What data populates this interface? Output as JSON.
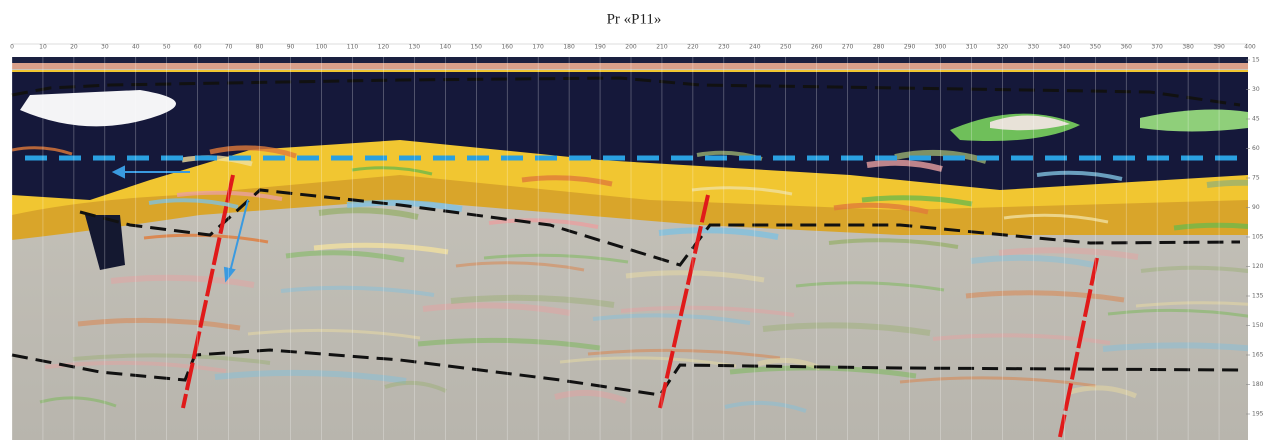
{
  "title": "Pr «P11»",
  "distance_axis": {
    "ticks": [
      0,
      10,
      20,
      30,
      40,
      50,
      60,
      70,
      80,
      90,
      100,
      110,
      120,
      130,
      140,
      150,
      160,
      170,
      180,
      190,
      200,
      210,
      220,
      230,
      240,
      250,
      260,
      270,
      280,
      290,
      300,
      310,
      320,
      330,
      340,
      350,
      360,
      370,
      380,
      390,
      400
    ]
  },
  "depth_axis": {
    "ticks": [
      15,
      30,
      45,
      60,
      75,
      90,
      105,
      120,
      135,
      150,
      165,
      180,
      195
    ]
  }
}
